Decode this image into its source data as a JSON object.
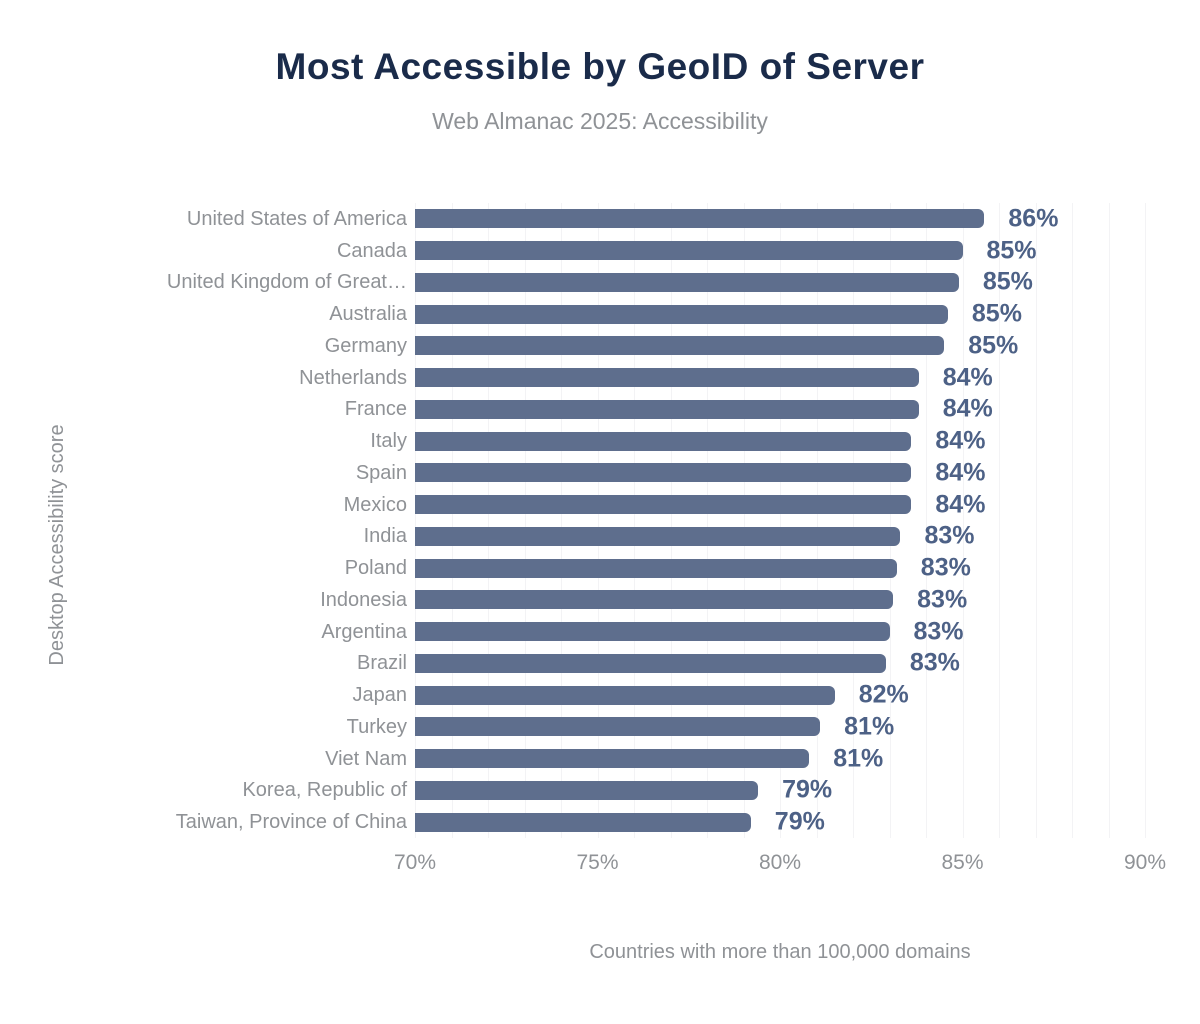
{
  "header": {
    "title": "Most Accessible by GeoID of Server",
    "subtitle": "Web Almanac 2025: Accessibility"
  },
  "chart_data": {
    "type": "bar",
    "orientation": "horizontal",
    "title": "Most Accessible by GeoID of Server",
    "subtitle": "Web Almanac 2025: Accessibility",
    "ylabel": "Desktop Accessibility score",
    "xlabel": "",
    "caption": "Countries with more than 100,000 domains",
    "xlim": [
      70,
      90
    ],
    "x_ticks": [
      "70%",
      "75%",
      "80%",
      "85%",
      "90%"
    ],
    "x_tick_values": [
      70,
      75,
      80,
      85,
      90
    ],
    "grid": "vertical gridlines every 1%, legend none",
    "categories": [
      "United States of America",
      "Canada",
      "United Kingdom of Great…",
      "Australia",
      "Germany",
      "Netherlands",
      "France",
      "Italy",
      "Spain",
      "Mexico",
      "India",
      "Poland",
      "Indonesia",
      "Argentina",
      "Brazil",
      "Japan",
      "Turkey",
      "Viet Nam",
      "Korea, Republic of",
      "Taiwan, Province of China"
    ],
    "values": [
      85.6,
      85.0,
      84.9,
      84.6,
      84.5,
      83.8,
      83.8,
      83.6,
      83.6,
      83.6,
      83.3,
      83.2,
      83.1,
      83.0,
      82.9,
      81.5,
      81.1,
      80.8,
      79.4,
      79.2
    ],
    "value_labels": [
      "86%",
      "85%",
      "85%",
      "85%",
      "85%",
      "84%",
      "84%",
      "84%",
      "84%",
      "84%",
      "83%",
      "83%",
      "83%",
      "83%",
      "83%",
      "82%",
      "81%",
      "81%",
      "79%",
      "79%"
    ]
  },
  "colors": {
    "bar": "#5e6e8d",
    "value_label": "#4d6186",
    "title": "#1a2b4a",
    "muted_text": "#8f9296",
    "gridline": "#f3f3f5"
  }
}
